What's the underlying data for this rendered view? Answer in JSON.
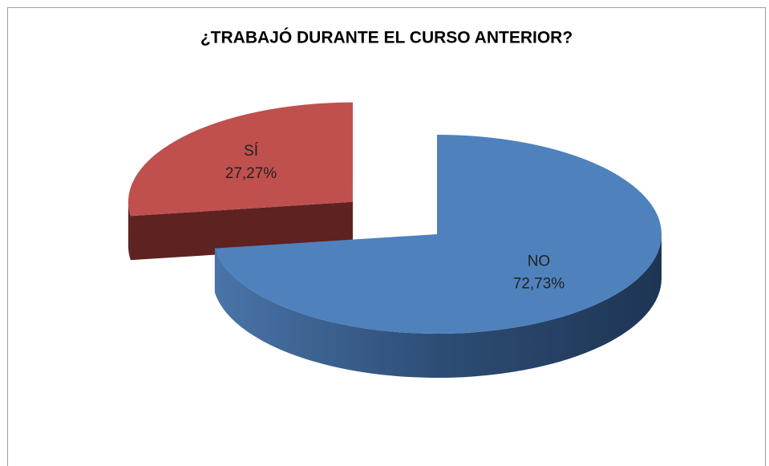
{
  "chart_data": {
    "type": "pie",
    "title": "¿TRABAJÓ DURANTE EL CURSO ANTERIOR?",
    "categories": [
      "SÍ",
      "NO"
    ],
    "values": [
      27.27,
      72.73
    ],
    "value_labels": [
      "27,27%",
      "72,73%"
    ],
    "colors": [
      "#c0504d",
      "#4f81bd"
    ],
    "side_colors": [
      "#5e2220",
      "#2e4f78"
    ]
  }
}
